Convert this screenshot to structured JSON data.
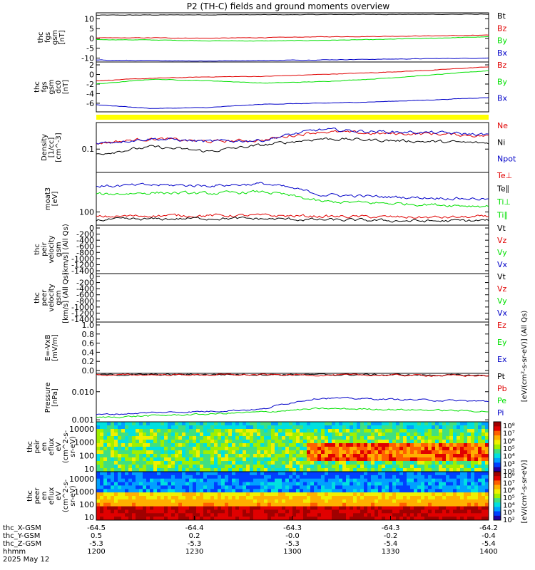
{
  "title": "P2 (TH-C) fields and ground moments overview",
  "colors": {
    "black": "#000000",
    "red": "#e00000",
    "green": "#00e000",
    "blue": "#0000c8",
    "yellow": "#ffff00"
  },
  "chart_data": [
    {
      "type": "line",
      "ylabel": [
        "thc",
        "fgs",
        "gsm",
        "[nT]"
      ],
      "yticks": [
        "10",
        "5",
        "0",
        "-5",
        "-10"
      ],
      "ylim": [
        -12,
        13
      ],
      "series": [
        {
          "name": "Bt",
          "color": "black",
          "values": [
            11.8,
            11.9,
            12.0,
            12.0,
            12.1,
            12.2,
            12.2,
            12.3
          ]
        },
        {
          "name": "Bz",
          "color": "red",
          "values": [
            0.2,
            0.3,
            0.1,
            0.4,
            0.8,
            1.0,
            1.3,
            1.6
          ]
        },
        {
          "name": "By",
          "color": "green",
          "values": [
            -0.6,
            -0.8,
            -1.2,
            -1.3,
            -1.0,
            -0.6,
            0.1,
            0.8
          ]
        },
        {
          "name": "Bx",
          "color": "blue",
          "values": [
            -11.0,
            -11.3,
            -11.5,
            -11.2,
            -10.9,
            -10.6,
            -10.3,
            -10.0
          ]
        }
      ]
    },
    {
      "type": "line",
      "ylabel": [
        "thc",
        "fgs",
        "gsm",
        "dc0",
        "[nT]"
      ],
      "yticks": [
        "2",
        "0",
        "-2",
        "-4",
        "-6"
      ],
      "ylim": [
        -7.8,
        2.6
      ],
      "series": [
        {
          "name": "Bz",
          "color": "red",
          "values": [
            -1.3,
            -0.8,
            -0.5,
            -0.4,
            0.0,
            0.4,
            0.9,
            1.6
          ]
        },
        {
          "name": "By",
          "color": "green",
          "values": [
            -2.0,
            -1.0,
            -1.3,
            -1.8,
            -1.5,
            -0.9,
            -0.1,
            0.8
          ]
        },
        {
          "name": "Bx",
          "color": "blue",
          "values": [
            -6.3,
            -7.1,
            -6.9,
            -6.2,
            -6.0,
            -5.7,
            -5.3,
            -4.8
          ]
        }
      ]
    },
    {
      "type": "line",
      "ylabel": [
        "Density",
        "[1/cc]",
        "[cm^-3]"
      ],
      "yticks": [
        "0.1"
      ],
      "log": true,
      "ylim": [
        0.035,
        0.33
      ],
      "series": [
        {
          "name": "Ne",
          "color": "red",
          "values": [
            0.13,
            0.16,
            0.14,
            0.15,
            0.22,
            0.2,
            0.2,
            0.18
          ]
        },
        {
          "name": "Ni",
          "color": "black",
          "values": [
            0.08,
            0.11,
            0.09,
            0.12,
            0.16,
            0.15,
            0.14,
            0.13
          ]
        },
        {
          "name": "Npot",
          "color": "blue",
          "values": [
            0.13,
            0.16,
            0.14,
            0.15,
            0.24,
            0.22,
            0.21,
            0.19
          ]
        }
      ]
    },
    {
      "type": "line",
      "ylabel": [
        "moat3",
        "[eV]"
      ],
      "yticks": [
        "100"
      ],
      "log": true,
      "ylim": [
        55,
        600
      ],
      "series": [
        {
          "name": "Te⊥",
          "color": "red",
          "values": [
            80,
            85,
            85,
            85,
            82,
            80,
            78,
            80
          ]
        },
        {
          "name": "Te∥",
          "color": "black",
          "values": [
            70,
            72,
            75,
            73,
            70,
            68,
            66,
            68
          ]
        },
        {
          "name": "Ti⊥",
          "color": "green",
          "values": [
            220,
            240,
            230,
            250,
            160,
            150,
            140,
            130
          ]
        },
        {
          "name": "Ti∥",
          "color": "blue",
          "values": [
            320,
            340,
            330,
            360,
            220,
            200,
            190,
            180
          ]
        }
      ]
    },
    {
      "type": "line",
      "ylabel": [
        "thc",
        "peir",
        "velocity",
        "gsm",
        "[km/s] (All Qs)"
      ],
      "yticks": [
        "0",
        "-200",
        "-400",
        "-600",
        "-800",
        "-1000",
        "-1200",
        "-1400"
      ],
      "legend": [
        "Vt",
        "Vz",
        "Vy",
        "Vx"
      ],
      "series": []
    },
    {
      "type": "line",
      "ylabel": [
        "thc",
        "peer",
        "velocity",
        "gsm",
        "[km/s] (All Qs)"
      ],
      "yticks": [
        "0",
        "-200",
        "-400",
        "-600",
        "-800",
        "-1000",
        "-1200",
        "-1400"
      ],
      "legend": [
        "Vt",
        "Vz",
        "Vy",
        "Vx"
      ],
      "series": []
    },
    {
      "type": "line",
      "ylabel": [
        "E=-VxB",
        "[mV/m]"
      ],
      "yticks": [
        "1.0",
        "0.8",
        "0.6",
        "0.4",
        "0.2",
        "0.0"
      ],
      "legend": [
        "Ez",
        "Ey",
        "Ex"
      ],
      "series": []
    },
    {
      "type": "line",
      "ylabel": [
        "Pressure",
        "[nPa]"
      ],
      "yticks": [
        "0.010",
        "0.001"
      ],
      "log": true,
      "ylim": [
        0.00085,
        0.045
      ],
      "series": [
        {
          "name": "Pt",
          "color": "black",
          "values": [
            0.04,
            0.04,
            0.041,
            0.041,
            0.04,
            0.04,
            0.039,
            0.038
          ]
        },
        {
          "name": "Pb",
          "color": "red",
          "values": [
            0.039,
            0.04,
            0.04,
            0.04,
            0.039,
            0.039,
            0.038,
            0.037
          ]
        },
        {
          "name": "Pe",
          "color": "green",
          "values": [
            0.0012,
            0.0014,
            0.0016,
            0.0019,
            0.0025,
            0.0024,
            0.0022,
            0.002
          ]
        },
        {
          "name": "Pi",
          "color": "blue",
          "values": [
            0.0015,
            0.0018,
            0.002,
            0.0024,
            0.006,
            0.0055,
            0.005,
            0.0045
          ]
        }
      ]
    },
    {
      "type": "heatmap",
      "ylabel": [
        "thc",
        "peir",
        "en",
        "eflux",
        "eV",
        "(cm^2-s-",
        "sr-eV)"
      ],
      "yticks": [
        "10000",
        "1000",
        "100",
        "10"
      ]
    },
    {
      "type": "heatmap",
      "ylabel": [
        "thc",
        "peer",
        "en",
        "eflux",
        "eV",
        "(cm^2-s-",
        "sr-eV)"
      ],
      "yticks": [
        "10000",
        "1000",
        "100",
        "10"
      ]
    }
  ],
  "right_legends": [
    [
      "Bt",
      "Bz",
      "By",
      "Bx"
    ],
    [
      "Bz",
      "By",
      "Bx"
    ],
    [
      "Ne",
      "Ni",
      "Npot"
    ],
    [
      "Te⊥",
      "Te∥",
      "Ti⊥",
      "Ti∥"
    ],
    [
      "Vt",
      "Vz",
      "Vy",
      "Vx"
    ],
    [
      "Vt",
      "Vz",
      "Vy",
      "Vx"
    ],
    [
      "Ez",
      "Ey",
      "Ex"
    ],
    [
      "Pt",
      "Pb",
      "Pe",
      "Pi"
    ]
  ],
  "colorbar": {
    "ticks": [
      "10⁸",
      "10⁷",
      "10⁶",
      "10⁵",
      "10⁴",
      "10³",
      "10²",
      "10⁸",
      "10⁷",
      "10⁶",
      "10⁵",
      "10⁴",
      "10³",
      "10²"
    ],
    "label": "[eV/(cm²-s-sr-eV)]",
    "label_upper": "[eV/(cm²-s-sr-eV)] (All Qs)"
  },
  "xaxis": {
    "rows": [
      {
        "name": "thc_X-GSM",
        "values": [
          "-64.5",
          "-64.4",
          "-64.3",
          "-64.3",
          "-64.2"
        ]
      },
      {
        "name": "thc_Y-GSM",
        "values": [
          "0.5",
          "0.2",
          "-0.0",
          "-0.2",
          "-0.4"
        ]
      },
      {
        "name": "thc_Z-GSM",
        "values": [
          "-5.3",
          "-5.3",
          "-5.3",
          "-5.4",
          "-5.4"
        ]
      },
      {
        "name": "hhmm",
        "values": [
          "1200",
          "1230",
          "1300",
          "1330",
          "1400"
        ]
      }
    ],
    "date": "2025 May 12"
  }
}
